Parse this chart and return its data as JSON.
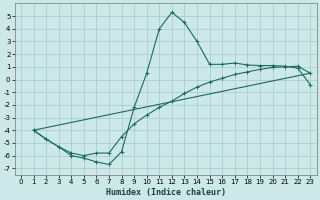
{
  "title": "",
  "xlabel": "Humidex (Indice chaleur)",
  "bg_color": "#cce8e8",
  "grid_color": "#aacece",
  "line_color": "#1a6b5a",
  "xlim": [
    -0.5,
    23.5
  ],
  "ylim": [
    -7.5,
    6.0
  ],
  "xticks": [
    0,
    1,
    2,
    3,
    4,
    5,
    6,
    7,
    8,
    9,
    10,
    11,
    12,
    13,
    14,
    15,
    16,
    17,
    18,
    19,
    20,
    21,
    22,
    23
  ],
  "yticks": [
    -7,
    -6,
    -5,
    -4,
    -3,
    -2,
    -1,
    0,
    1,
    2,
    3,
    4,
    5
  ],
  "curve1_x": [
    1,
    2,
    3,
    4,
    5,
    6,
    7,
    8,
    9,
    10,
    11,
    12,
    13,
    14,
    15,
    16,
    17,
    18,
    19,
    20,
    21,
    22,
    23
  ],
  "curve1_y": [
    -4.0,
    -4.7,
    -5.3,
    -6.0,
    -6.2,
    -6.5,
    -6.7,
    -5.7,
    -2.2,
    0.5,
    4.0,
    5.3,
    4.5,
    3.0,
    1.2,
    1.2,
    1.3,
    1.15,
    1.1,
    1.1,
    1.05,
    0.9,
    -0.4
  ],
  "curve2_x": [
    1,
    2,
    3,
    4,
    5,
    6,
    7,
    8,
    9,
    10,
    11,
    12,
    13,
    14,
    15,
    16,
    17,
    18,
    19,
    20,
    21,
    22,
    23
  ],
  "curve2_y": [
    -4.0,
    -4.7,
    -5.3,
    -5.8,
    -6.0,
    -5.8,
    -5.8,
    -4.5,
    -3.5,
    -2.8,
    -2.2,
    -1.7,
    -1.1,
    -0.6,
    -0.2,
    0.1,
    0.4,
    0.6,
    0.8,
    0.95,
    1.0,
    1.05,
    0.5
  ],
  "curve3_x": [
    1,
    23
  ],
  "curve3_y": [
    -4.0,
    0.5
  ],
  "xlabel_fontsize": 6,
  "tick_fontsize": 5
}
